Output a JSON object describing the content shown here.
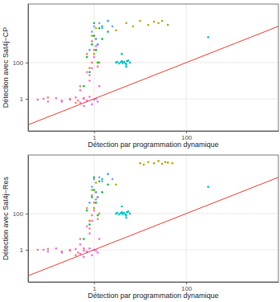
{
  "chart_data": [
    {
      "type": "scatter",
      "x_label": "Détection par programmation dynamique",
      "y_label": "Détection avec Sat4j−CP",
      "xlim": [
        0.037,
        10000
      ],
      "ylim": [
        0.017,
        170000
      ],
      "xticks": [
        1,
        100
      ],
      "yticks": [
        1,
        100
      ],
      "log": true,
      "grid": true,
      "series": [
        {
          "color": "#F564E3",
          "x": [
            0.08,
            0.1,
            0.15,
            0.2,
            0.3,
            0.4,
            0.5,
            0.6,
            0.7,
            0.8,
            0.9,
            1,
            1.1,
            1.2,
            0.5,
            0.8,
            0.9,
            1,
            1.1,
            0.7,
            1.3,
            0.6
          ],
          "values": [
            1,
            0.7,
            1.1,
            0.8,
            0.9,
            1.2,
            0.6,
            1,
            0.8,
            1.3,
            0.5,
            0.9,
            1,
            0.7,
            3,
            10,
            50,
            200,
            800,
            30,
            5,
            0.4
          ]
        },
        {
          "color": "#F8766D",
          "x": [
            0.06,
            0.1,
            0.2,
            0.3,
            0.45,
            0.6,
            0.8,
            0.9,
            1,
            1.1,
            0.7,
            0.5,
            1.2,
            0.9,
            0.4
          ],
          "values": [
            0.9,
            1.2,
            0.7,
            1,
            0.8,
            1.1,
            20,
            100,
            500,
            2000,
            300,
            5,
            60,
            1500,
            0.6
          ]
        },
        {
          "color": "#B79F00",
          "x": [
            0.8,
            1,
            1.2,
            0.9,
            1.1,
            5,
            7,
            10,
            15,
            20,
            25,
            30,
            40,
            1.3,
            3
          ],
          "values": [
            50,
            300,
            1000,
            3000,
            8000,
            15000,
            10000,
            20000,
            12000,
            18000,
            15000,
            20000,
            12000,
            100,
            6000
          ]
        },
        {
          "color": "#00BA38",
          "x": [
            0.7,
            0.9,
            1,
            1.1,
            1.3,
            1.5,
            2,
            0.8,
            1.2,
            1,
            0.6
          ],
          "values": [
            200,
            1000,
            3000,
            500,
            8000,
            2000,
            5000,
            30,
            100,
            15000,
            5
          ]
        },
        {
          "color": "#00BFC4",
          "x": [
            3,
            3.5,
            4,
            4.5,
            5,
            5.5,
            6,
            3.2,
            4.2,
            5.2,
            3.8,
            4.8,
            4,
            5,
            300,
            1.5,
            2
          ],
          "values": [
            100,
            90,
            120,
            110,
            80,
            130,
            100,
            110,
            95,
            120,
            105,
            90,
            300,
            60,
            2500,
            10000,
            20000
          ]
        },
        {
          "color": "#619CFF",
          "x": [
            0.9,
            1,
            1.1,
            1.3,
            1.5,
            2,
            2.5,
            0.8,
            1.2
          ],
          "values": [
            5000,
            10000,
            2000,
            15000,
            8000,
            20000,
            10000,
            500,
            1000
          ]
        }
      ]
    },
    {
      "type": "scatter",
      "x_label": "Détection par programmation dynamique",
      "y_label": "Détection avec Sat4j−Res",
      "xlim": [
        0.037,
        10000
      ],
      "ylim": [
        0.017,
        170000
      ],
      "xticks": [
        1,
        100
      ],
      "yticks": [
        1,
        100
      ],
      "log": true,
      "grid": true,
      "series": [
        {
          "color": "#F564E3",
          "x": [
            0.08,
            0.1,
            0.15,
            0.2,
            0.3,
            0.4,
            0.5,
            0.6,
            0.7,
            0.8,
            0.9,
            1,
            1.1,
            1.2,
            0.5,
            0.8,
            0.9,
            1,
            1.1,
            0.7,
            1.3,
            0.6
          ],
          "values": [
            1,
            0.8,
            1.2,
            0.7,
            1,
            1.1,
            0.6,
            0.9,
            0.8,
            1.2,
            0.5,
            1,
            0.9,
            0.7,
            2,
            8,
            40,
            150,
            600,
            20,
            4,
            0.4
          ]
        },
        {
          "color": "#F8766D",
          "x": [
            0.06,
            0.1,
            0.2,
            0.3,
            0.45,
            0.6,
            0.8,
            0.9,
            1,
            1.1,
            0.7,
            0.5,
            1.2,
            0.9,
            0.4
          ],
          "values": [
            1,
            1.1,
            0.8,
            0.9,
            0.7,
            1.2,
            15,
            80,
            400,
            1500,
            200,
            4,
            50,
            1000,
            0.5
          ]
        },
        {
          "color": "#B79F00",
          "x": [
            0.8,
            1,
            1.2,
            0.9,
            1.1,
            10,
            12,
            15,
            20,
            25,
            30,
            35,
            40,
            50,
            1.3,
            3
          ],
          "values": [
            40,
            200,
            800,
            2000,
            5000,
            60000,
            50000,
            70000,
            60000,
            80000,
            55000,
            70000,
            65000,
            60000,
            100,
            4000
          ]
        },
        {
          "color": "#00BA38",
          "x": [
            0.7,
            0.9,
            1,
            1.1,
            1.3,
            1.5,
            2,
            0.8,
            1.2,
            1,
            0.6
          ],
          "values": [
            150,
            800,
            2000,
            400,
            6000,
            1500,
            4000,
            25,
            80,
            10000,
            4
          ]
        },
        {
          "color": "#00BFC4",
          "x": [
            3,
            3.5,
            4,
            4.5,
            5,
            5.5,
            6,
            3.2,
            4.2,
            5.2,
            3.8,
            4.8,
            4,
            5,
            300,
            1.5,
            2
          ],
          "values": [
            100,
            90,
            120,
            110,
            80,
            130,
            100,
            110,
            95,
            120,
            105,
            90,
            250,
            60,
            3000,
            8000,
            15000
          ]
        },
        {
          "color": "#619CFF",
          "x": [
            0.9,
            1,
            1.1,
            1.3,
            1.5,
            2,
            2.5,
            0.8,
            1.2
          ],
          "values": [
            3000,
            8000,
            1500,
            10000,
            6000,
            15000,
            8000,
            400,
            800
          ]
        }
      ]
    }
  ]
}
